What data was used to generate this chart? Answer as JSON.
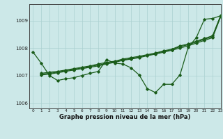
{
  "xlabel": "Graphe pression niveau de la mer (hPa)",
  "bg_color": "#cce8e8",
  "grid_color": "#aad0d0",
  "line_color": "#1a5c1a",
  "xlim": [
    -0.5,
    23
  ],
  "ylim": [
    1005.8,
    1009.6
  ],
  "yticks": [
    1006,
    1007,
    1008,
    1009
  ],
  "xticks": [
    0,
    1,
    2,
    3,
    4,
    5,
    6,
    7,
    8,
    9,
    10,
    11,
    12,
    13,
    14,
    15,
    16,
    17,
    18,
    19,
    20,
    21,
    22,
    23
  ],
  "series": [
    {
      "x": [
        0,
        1,
        2,
        3,
        4,
        5,
        6,
        7,
        8,
        9,
        10,
        11,
        12,
        13,
        14,
        15,
        16,
        17,
        18,
        19,
        20,
        21,
        22,
        23
      ],
      "y": [
        1007.85,
        1007.45,
        1007.0,
        1006.82,
        1006.88,
        1006.92,
        1007.0,
        1007.08,
        1007.15,
        1007.58,
        1007.45,
        1007.42,
        1007.28,
        1007.02,
        1006.52,
        1006.38,
        1006.68,
        1006.68,
        1007.02,
        1008.02,
        1008.38,
        1009.05,
        1009.08,
        1009.18
      ]
    },
    {
      "x": [
        1,
        2,
        3,
        4,
        5,
        6,
        7,
        8,
        9,
        10,
        11,
        12,
        13,
        14,
        15,
        16,
        17,
        18,
        19,
        20,
        21,
        22,
        23
      ],
      "y": [
        1007.02,
        1007.05,
        1007.1,
        1007.15,
        1007.2,
        1007.25,
        1007.3,
        1007.35,
        1007.42,
        1007.48,
        1007.55,
        1007.6,
        1007.65,
        1007.72,
        1007.78,
        1007.85,
        1007.92,
        1008.0,
        1008.08,
        1008.18,
        1008.28,
        1008.38,
        1009.15
      ]
    },
    {
      "x": [
        1,
        2,
        3,
        4,
        5,
        6,
        7,
        8,
        9,
        10,
        11,
        12,
        13,
        14,
        15,
        16,
        17,
        18,
        19,
        20,
        21,
        22,
        23
      ],
      "y": [
        1007.05,
        1007.08,
        1007.12,
        1007.18,
        1007.22,
        1007.28,
        1007.33,
        1007.38,
        1007.45,
        1007.5,
        1007.57,
        1007.62,
        1007.67,
        1007.74,
        1007.8,
        1007.88,
        1007.94,
        1008.05,
        1008.12,
        1008.22,
        1008.32,
        1008.42,
        1009.18
      ]
    },
    {
      "x": [
        1,
        2,
        3,
        4,
        5,
        6,
        7,
        8,
        9,
        10,
        11,
        12,
        13,
        14,
        15,
        16,
        17,
        18,
        19,
        20,
        21,
        22,
        23
      ],
      "y": [
        1007.08,
        1007.12,
        1007.15,
        1007.2,
        1007.25,
        1007.3,
        1007.35,
        1007.42,
        1007.48,
        1007.52,
        1007.6,
        1007.65,
        1007.7,
        1007.76,
        1007.82,
        1007.9,
        1007.96,
        1008.08,
        1008.15,
        1008.25,
        1008.35,
        1008.45,
        1009.2
      ]
    }
  ]
}
